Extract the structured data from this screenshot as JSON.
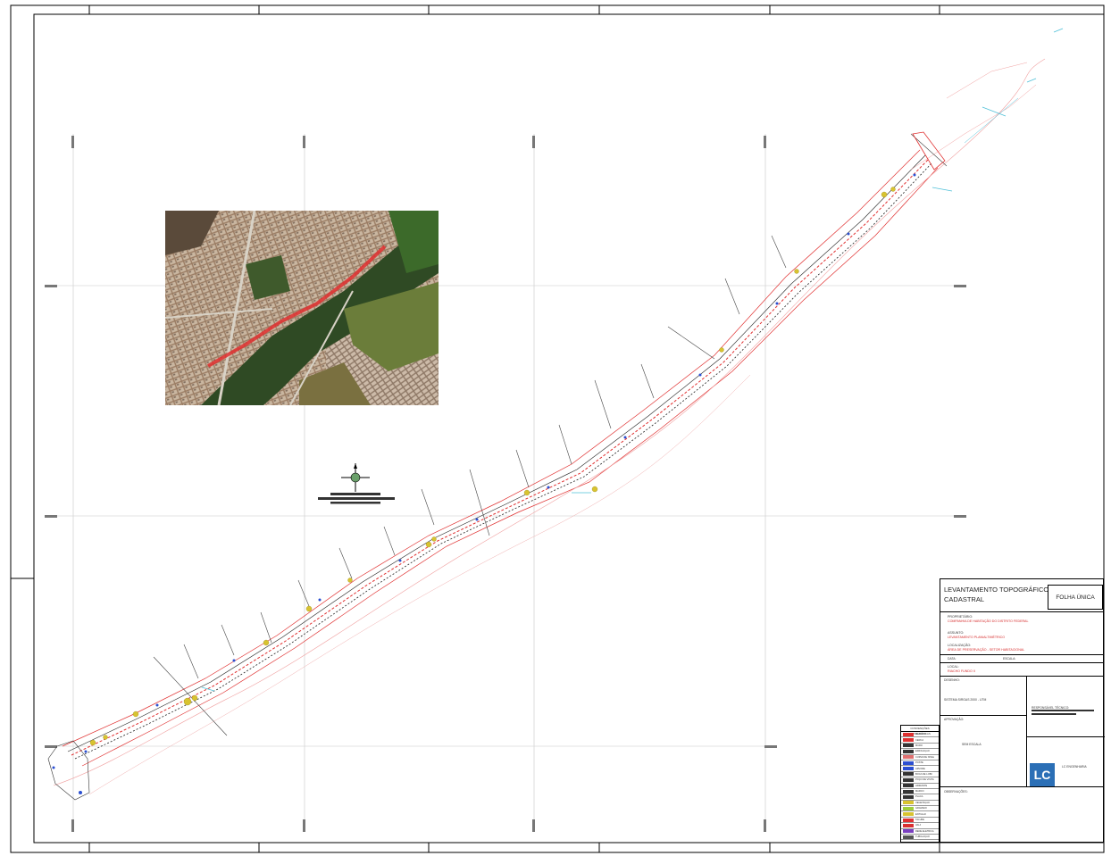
{
  "title_block": {
    "project_title": "LEVANTAMENTO TOPOGRÁFICO CADASTRAL",
    "sheet": "FOLHA ÚNICA",
    "field_proprietario": "PROPRIETÁRIO:",
    "proprietario_value": "COMPANHIA DE HABITAÇÃO DO DISTRITO FEDERAL",
    "field_assunto": "ASSUNTO:",
    "assunto_value": "LEVANTAMENTO PLANIALTIMÉTRICO",
    "field_localizacao": "LOCALIZAÇÃO:",
    "localizacao_value": "ÁREA DE PRESERVAÇÃO - SETOR HABITACIONAL",
    "field_data": "DATA:",
    "field_escala": "ESCALA:",
    "field_local": "LOCAL:",
    "local_value": "RIACHO FUNDO II",
    "field_desenho": "DESENHO:",
    "desenho_value": "SISTEMA SIRGAS 2000 - UTM",
    "field_aprovacao": "APROVAÇÃO:",
    "aprovacao_value": "SEM ESCALA",
    "field_responsavel": "RESPONSÁVEL TÉCNICO:",
    "company_logo": "LC",
    "company_name": "LC ENGENHARIA",
    "field_obs": "OBSERVAÇÕES:"
  },
  "legend": {
    "header": "CONVENÇÕES TOPOGRÁFICAS",
    "items": [
      {
        "label": "MEIO-FIO",
        "color": "#e03030"
      },
      {
        "label": "CERCA",
        "color": "#e03030"
      },
      {
        "label": "MURO",
        "color": "#333333"
      },
      {
        "label": "EDIFICAÇÃO",
        "color": "#333333"
      },
      {
        "label": "CURVA DE NÍVEL",
        "color": "#e07070"
      },
      {
        "label": "POSTE",
        "color": "#2b4fd1"
      },
      {
        "label": "ÁRVORE",
        "color": "#2b4fd1"
      },
      {
        "label": "BOCA DE LOBO",
        "color": "#333333"
      },
      {
        "label": "POÇO DE VISITA",
        "color": "#333333"
      },
      {
        "label": "HIDRANTE",
        "color": "#333333"
      },
      {
        "label": "MARCO",
        "color": "#333333"
      },
      {
        "label": "PLACA",
        "color": "#333333"
      },
      {
        "label": "VEGETAÇÃO",
        "color": "#d8c330"
      },
      {
        "label": "GRAMADO",
        "color": "#9fcf3c"
      },
      {
        "label": "ENTULHO",
        "color": "#d8c330"
      },
      {
        "label": "TALUDE",
        "color": "#e03030"
      },
      {
        "label": "VALA",
        "color": "#d83030"
      },
      {
        "label": "REDE ELÉTRICA",
        "color": "#7a3fc0"
      },
      {
        "label": "TUBULAÇÃO",
        "color": "#555555"
      }
    ]
  },
  "colors": {
    "survey_red": "#e03030",
    "survey_line": "#222222",
    "vegetation": "#d8c330",
    "water": "#4fc0d8",
    "grid": "#bbbbbb",
    "accent": "#2b6fb6"
  },
  "north_arrow": {
    "label": "N"
  },
  "aerial_photo": {
    "description_hidden": ""
  }
}
